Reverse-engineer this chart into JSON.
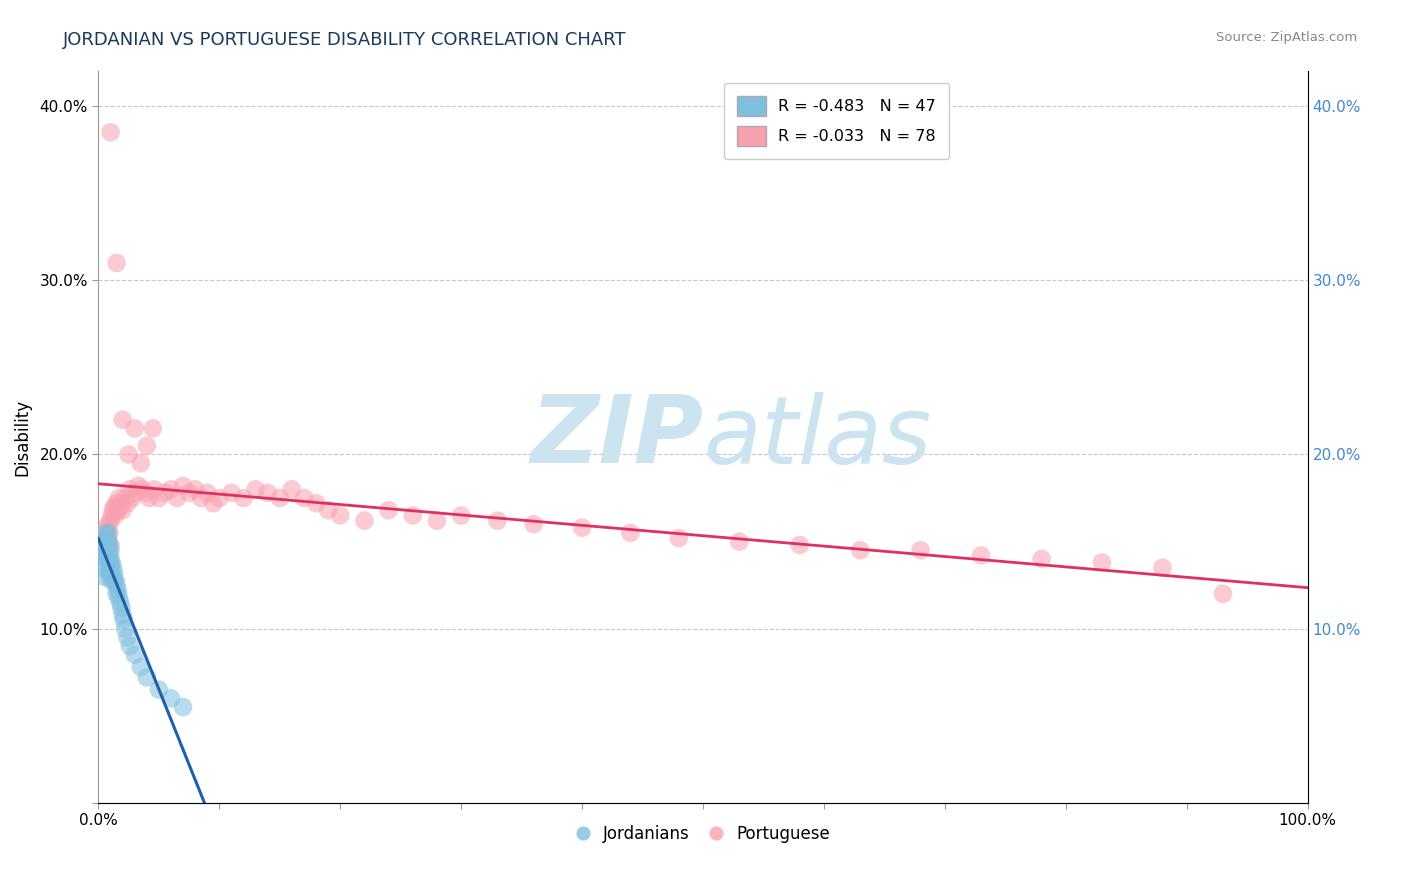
{
  "title": "JORDANIAN VS PORTUGUESE DISABILITY CORRELATION CHART",
  "source": "Source: ZipAtlas.com",
  "ylabel": "Disability",
  "xlim": [
    0,
    1.0
  ],
  "ylim": [
    0,
    0.42
  ],
  "xticks": [
    0.0,
    0.1,
    0.2,
    0.3,
    0.4,
    0.5,
    0.6,
    0.7,
    0.8,
    0.9,
    1.0
  ],
  "yticks": [
    0.0,
    0.1,
    0.2,
    0.3,
    0.4
  ],
  "legend_r1": "R = -0.483",
  "legend_n1": "N = 47",
  "legend_r2": "R = -0.033",
  "legend_n2": "N = 78",
  "blue_color": "#7fbfdf",
  "pink_color": "#f9a0b0",
  "blue_line_color": "#2060a8",
  "pink_line_color": "#e03060",
  "grid_color": "#c8c8c8",
  "watermark_color": "#cce4f0",
  "title_color": "#1a3a5c",
  "right_axis_color": "#4488cc",
  "jordanians_x": [
    0.003,
    0.004,
    0.005,
    0.005,
    0.006,
    0.006,
    0.006,
    0.007,
    0.007,
    0.007,
    0.008,
    0.008,
    0.008,
    0.008,
    0.009,
    0.009,
    0.009,
    0.009,
    0.01,
    0.01,
    0.01,
    0.01,
    0.01,
    0.011,
    0.011,
    0.012,
    0.012,
    0.013,
    0.013,
    0.014,
    0.015,
    0.015,
    0.016,
    0.017,
    0.018,
    0.019,
    0.02,
    0.021,
    0.022,
    0.024,
    0.026,
    0.03,
    0.035,
    0.04,
    0.05,
    0.06,
    0.07
  ],
  "jordanians_y": [
    0.135,
    0.13,
    0.15,
    0.145,
    0.155,
    0.148,
    0.142,
    0.152,
    0.147,
    0.14,
    0.155,
    0.15,
    0.145,
    0.138,
    0.148,
    0.143,
    0.138,
    0.132,
    0.145,
    0.14,
    0.136,
    0.131,
    0.128,
    0.138,
    0.132,
    0.135,
    0.129,
    0.132,
    0.127,
    0.128,
    0.125,
    0.12,
    0.122,
    0.118,
    0.115,
    0.112,
    0.108,
    0.105,
    0.1,
    0.095,
    0.09,
    0.085,
    0.078,
    0.072,
    0.065,
    0.06,
    0.055
  ],
  "portuguese_x": [
    0.004,
    0.005,
    0.006,
    0.006,
    0.007,
    0.008,
    0.008,
    0.009,
    0.01,
    0.01,
    0.011,
    0.012,
    0.013,
    0.014,
    0.015,
    0.016,
    0.017,
    0.018,
    0.019,
    0.02,
    0.022,
    0.024,
    0.026,
    0.028,
    0.03,
    0.033,
    0.036,
    0.039,
    0.042,
    0.046,
    0.05,
    0.055,
    0.06,
    0.065,
    0.07,
    0.075,
    0.08,
    0.085,
    0.09,
    0.095,
    0.1,
    0.11,
    0.12,
    0.13,
    0.14,
    0.15,
    0.16,
    0.17,
    0.18,
    0.19,
    0.2,
    0.22,
    0.24,
    0.26,
    0.28,
    0.3,
    0.33,
    0.36,
    0.4,
    0.44,
    0.48,
    0.53,
    0.58,
    0.63,
    0.68,
    0.73,
    0.78,
    0.83,
    0.88,
    0.93,
    0.01,
    0.015,
    0.02,
    0.025,
    0.03,
    0.035,
    0.04,
    0.045
  ],
  "portuguese_y": [
    0.15,
    0.145,
    0.155,
    0.148,
    0.158,
    0.16,
    0.152,
    0.155,
    0.162,
    0.148,
    0.165,
    0.168,
    0.17,
    0.165,
    0.172,
    0.168,
    0.175,
    0.17,
    0.172,
    0.168,
    0.175,
    0.172,
    0.18,
    0.175,
    0.178,
    0.182,
    0.18,
    0.178,
    0.175,
    0.18,
    0.175,
    0.178,
    0.18,
    0.175,
    0.182,
    0.178,
    0.18,
    0.175,
    0.178,
    0.172,
    0.175,
    0.178,
    0.175,
    0.18,
    0.178,
    0.175,
    0.18,
    0.175,
    0.172,
    0.168,
    0.165,
    0.162,
    0.168,
    0.165,
    0.162,
    0.165,
    0.162,
    0.16,
    0.158,
    0.155,
    0.152,
    0.15,
    0.148,
    0.145,
    0.145,
    0.142,
    0.14,
    0.138,
    0.135,
    0.12,
    0.385,
    0.31,
    0.22,
    0.2,
    0.215,
    0.195,
    0.205,
    0.215
  ]
}
